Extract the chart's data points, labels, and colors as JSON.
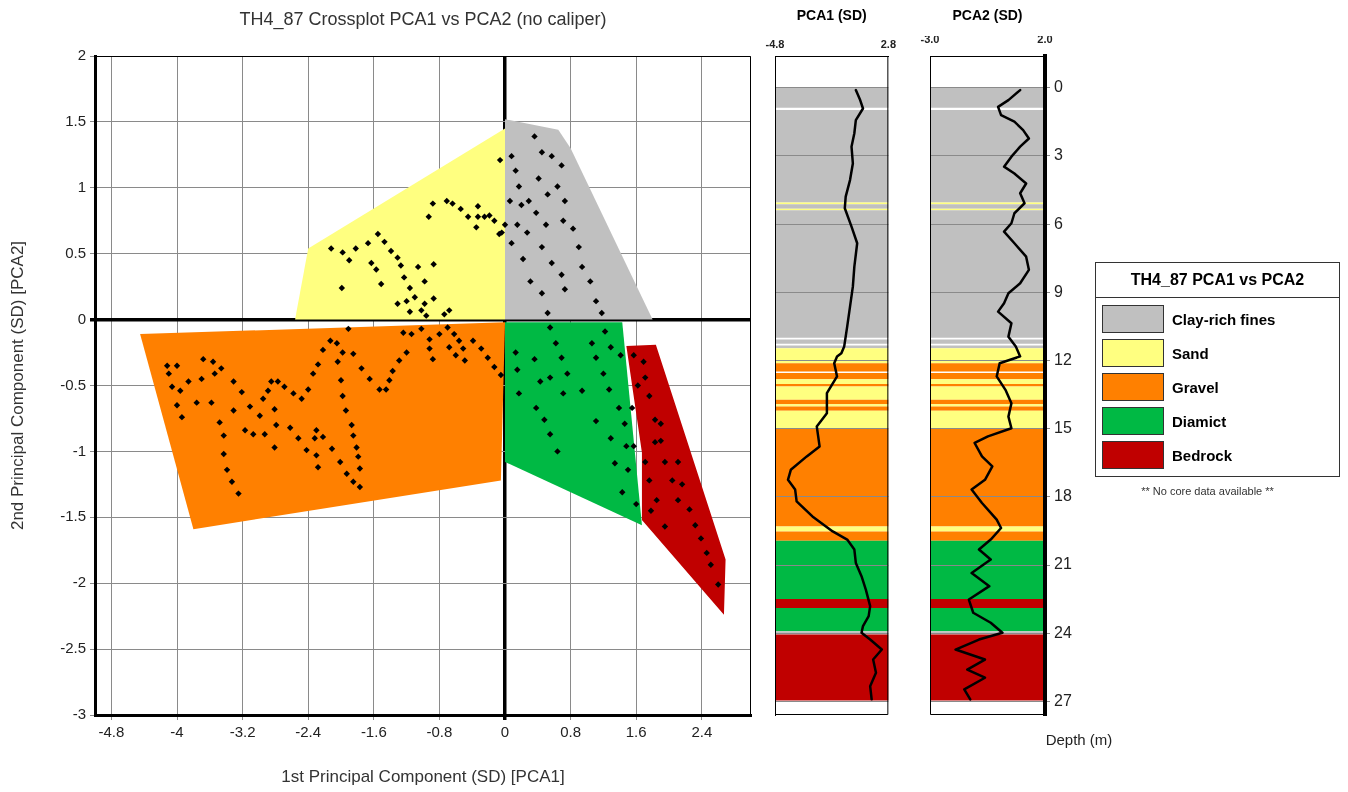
{
  "chart_data": [
    {
      "type": "scatter",
      "title": "TH4_87 Crossplot PCA1 vs PCA2 (no caliper)",
      "xlabel": "1st Principal Component (SD) [PCA1]",
      "ylabel": "2nd Principal Component (SD) [PCA2]",
      "xlim": [
        -5,
        3
      ],
      "ylim": [
        -3,
        2
      ],
      "xticks": [
        -4.8,
        -4,
        -3.2,
        -2.4,
        -1.6,
        -0.8,
        0,
        0.8,
        1.6,
        2.4
      ],
      "yticks": [
        -3,
        -2.5,
        -2,
        -1.5,
        -1,
        -0.5,
        0,
        0.5,
        1,
        1.5,
        2
      ],
      "grid": true,
      "legend": "right",
      "legend_title": "TH4_87 PCA1 vs PCA2",
      "annotations": [
        "** No core data available **"
      ],
      "series": [
        {
          "type": "area",
          "name": "Clay-rich fines",
          "color": "#c0c0c0",
          "x": [
            0,
            0.65,
            0.8,
            1.8,
            0
          ],
          "values": [
            1.52,
            1.44,
            1.3,
            0,
            0
          ]
        },
        {
          "type": "area",
          "name": "Sand",
          "color": "#ffff80",
          "x": [
            0,
            -2.4,
            -2.56,
            0
          ],
          "values": [
            1.45,
            0.54,
            0,
            0
          ]
        },
        {
          "type": "area",
          "name": "Gravel",
          "color": "#ff8000",
          "x": [
            -4.45,
            0,
            -0.05,
            -3.8
          ],
          "values": [
            -0.11,
            -0.02,
            -1.22,
            -1.59
          ]
        },
        {
          "type": "area",
          "name": "Diamict",
          "color": "#00b944",
          "x": [
            0,
            1.43,
            1.67,
            0
          ],
          "values": [
            -0.02,
            -0.02,
            -1.56,
            -1.08
          ]
        },
        {
          "type": "area",
          "name": "Bedrock",
          "color": "#c00000",
          "x": [
            1.48,
            1.84,
            2.69,
            2.67,
            1.67,
            1.67
          ],
          "values": [
            -0.2,
            -0.19,
            -1.82,
            -2.24,
            -1.52,
            -1.01
          ]
        },
        {
          "type": "scatter",
          "color": "#000000",
          "marker": "diamond",
          "x": [
            -4.12,
            -4.0,
            -4.1,
            -4.06,
            -3.96,
            -4.0,
            -3.94,
            -3.86,
            -3.76,
            -3.68,
            -3.56,
            -3.54,
            -3.46,
            -3.31,
            -3.7,
            -3.58,
            -3.31,
            -3.48,
            -3.43,
            -3.43,
            -3.39,
            -3.33,
            -3.25,
            -3.21,
            -3.11,
            -3.17,
            -3.07,
            -2.93,
            -2.99,
            -2.95,
            -2.89,
            -2.85,
            -2.77,
            -2.69,
            -2.58,
            -2.48,
            -2.4,
            -2.34,
            -2.28,
            -2.22,
            -2.13,
            -2.05,
            -1.98,
            -1.85,
            -1.75,
            -1.65,
            -1.53,
            -1.45,
            -1.41,
            -1.37,
            -1.29,
            -1.2,
            -2.04,
            -2.0,
            -1.98,
            -1.94,
            -1.87,
            -1.85,
            -1.81,
            -1.79,
            -1.77,
            -1.77,
            -1.85,
            -1.93,
            -2.01,
            -2.11,
            -2.81,
            -2.79,
            -2.81,
            -2.62,
            -2.52,
            -2.42,
            -2.3,
            -2.22,
            -2.3,
            -2.28,
            -2.32,
            -1.91,
            -1.24,
            -1.14,
            -1.02,
            -0.92,
            -0.92,
            -0.88,
            -0.8,
            -0.68,
            -0.62,
            -0.56,
            -0.51,
            -0.6,
            -0.49,
            -0.39,
            -0.29,
            -0.21,
            -0.13,
            -0.05,
            -0.7,
            -2.12,
            -1.98,
            -1.9,
            -1.82,
            -1.67,
            -1.55,
            -1.47,
            -1.39,
            -1.31,
            -1.63,
            -1.57,
            -1.51,
            -1.99,
            -1.27,
            -1.23,
            -1.16,
            -1.06,
            -0.98,
            -0.87,
            -0.87,
            -1.31,
            -1.2,
            -1.1,
            -0.98,
            -1.16,
            -1.02,
            -0.96,
            -0.93,
            -0.88,
            -0.71,
            -0.64,
            -0.54,
            -0.45,
            -0.33,
            -0.33,
            -0.25,
            -0.19,
            -0.13,
            -0.35,
            -0.07,
            -0.74,
            -0.68,
            0.36,
            0.45,
            0.57,
            0.69,
            0.08,
            0.13,
            0.17,
            0.2,
            0.06,
            0.29,
            0.41,
            0.52,
            0.64,
            0.73,
            0.71,
            0.83,
            0.15,
            0.27,
            0.08,
            0.38,
            0.5,
            0.45,
            0.57,
            0.69,
            0.73,
            0.22,
            0.31,
            0.45,
            0.52,
            0.9,
            0.94,
            1.04,
            1.11,
            1.18,
            0.0,
            -0.06,
            -0.04,
            0.55,
            0.62,
            0.69,
            0.76,
            0.71,
            0.94,
            0.13,
            0.15,
            0.17,
            0.36,
            0.43,
            0.55,
            0.38,
            0.48,
            0.55,
            0.64,
            1.06,
            1.11,
            1.2,
            1.27,
            1.22,
            1.29,
            1.39,
            1.46,
            1.55,
            1.11,
            1.29,
            1.34,
            1.43,
            1.5,
            1.57,
            1.6,
            1.48,
            1.41,
            1.57,
            1.69,
            1.71,
            1.76,
            1.83,
            1.9,
            1.95,
            2.04,
            2.11,
            2.16,
            2.25,
            2.32,
            2.39,
            2.46,
            2.51,
            2.6,
            1.76,
            1.85,
            1.95,
            1.71,
            1.83,
            1.9,
            2.11,
            1.62,
            1.78
          ],
          "values": [
            -0.35,
            -0.35,
            -0.41,
            -0.51,
            -0.54,
            -0.65,
            -0.74,
            -0.47,
            -0.63,
            -0.3,
            -0.32,
            -0.41,
            -0.37,
            -0.47,
            -0.45,
            -0.63,
            -0.69,
            -0.78,
            -0.88,
            -1.02,
            -1.14,
            -1.23,
            -1.32,
            -0.55,
            -0.66,
            -0.84,
            -0.87,
            -0.87,
            -0.73,
            -0.6,
            -0.54,
            -0.47,
            -0.47,
            -0.51,
            -0.56,
            -0.6,
            -0.53,
            -0.41,
            -0.34,
            -0.23,
            -0.16,
            -0.18,
            -0.25,
            -0.26,
            -0.37,
            -0.45,
            -0.53,
            -0.53,
            -0.46,
            -0.39,
            -0.31,
            -0.25,
            -0.32,
            -0.46,
            -0.58,
            -0.69,
            -0.8,
            -0.88,
            -0.97,
            -1.04,
            -1.13,
            -1.27,
            -1.23,
            -1.17,
            -1.08,
            -0.98,
            -0.68,
            -0.8,
            -0.97,
            -0.82,
            -0.9,
            -0.99,
            -0.84,
            -0.89,
            -1.03,
            -1.12,
            -0.9,
            -0.07,
            -0.1,
            -0.11,
            -0.07,
            -0.15,
            -0.22,
            -0.3,
            -0.11,
            -0.21,
            -0.11,
            -0.16,
            -0.22,
            -0.27,
            -0.31,
            -0.16,
            -0.22,
            -0.29,
            -0.36,
            -0.42,
            -0.06,
            0.54,
            0.51,
            0.45,
            0.54,
            0.58,
            0.65,
            0.59,
            0.52,
            0.47,
            0.43,
            0.38,
            0.27,
            0.24,
            0.41,
            0.32,
            0.24,
            0.4,
            0.29,
            0.42,
            0.16,
            0.12,
            0.14,
            0.17,
            0.12,
            0.06,
            0.07,
            0.03,
            0.78,
            0.88,
            0.9,
            0.88,
            0.84,
            0.78,
            0.86,
            0.78,
            0.78,
            0.79,
            0.75,
            0.7,
            0.65,
            0.04,
            0.07,
            1.39,
            1.27,
            1.24,
            1.17,
            1.24,
            1.13,
            1.01,
            0.87,
            0.9,
            0.9,
            1.07,
            0.95,
            1.01,
            0.9,
            0.75,
            0.69,
            0.72,
            0.66,
            0.58,
            0.81,
            0.72,
            0.55,
            0.43,
            0.34,
            0.23,
            0.46,
            0.29,
            0.2,
            0.05,
            0.55,
            0.4,
            0.29,
            0.14,
            0.05,
            0.72,
            1.21,
            0.66,
            -0.06,
            -0.18,
            -0.29,
            -0.41,
            -0.56,
            -0.54,
            -0.25,
            -0.38,
            -0.56,
            -0.3,
            -0.47,
            -0.44,
            -0.67,
            -0.76,
            -0.87,
            -1.0,
            -0.18,
            -0.29,
            -0.41,
            -0.53,
            -0.09,
            -0.21,
            -0.67,
            -0.79,
            -0.67,
            -0.77,
            -0.9,
            -1.09,
            -1.31,
            -1.14,
            -0.96,
            -1.4,
            -0.96,
            -0.27,
            -0.27,
            -0.32,
            -0.44,
            -0.58,
            -0.76,
            -0.92,
            -1.08,
            -1.22,
            -1.37,
            -1.25,
            -1.44,
            -1.56,
            -1.66,
            -1.77,
            -1.86,
            -2.01,
            -1.22,
            -1.37,
            -1.57,
            -1.08,
            -0.93,
            -0.79,
            -1.08,
            -0.5,
            -1.45
          ]
        }
      ]
    },
    {
      "type": "line",
      "title": "PCA1 (SD)",
      "xlim": [
        -4.8,
        2.8
      ],
      "xticks": [
        -4.8,
        2.8
      ],
      "ylim": [
        27.6,
        -1.4
      ],
      "yticks": [
        0,
        3,
        6,
        9,
        12,
        15,
        18,
        21,
        24,
        27
      ],
      "grid": "y",
      "tick_labels": "x",
      "bands": [
        {
          "axis": "y",
          "from": 0,
          "to": 0.88,
          "color": "#c0c0c0"
        },
        {
          "axis": "y",
          "from": 0.98,
          "to": 5.05,
          "color": "#c0c0c0"
        },
        {
          "axis": "y",
          "from": 5.05,
          "to": 5.12,
          "color": "#ffff80"
        },
        {
          "axis": "y",
          "from": 5.12,
          "to": 5.32,
          "color": "#c0c0c0"
        },
        {
          "axis": "y",
          "from": 5.32,
          "to": 5.39,
          "color": "#ffff80"
        },
        {
          "axis": "y",
          "from": 5.39,
          "to": 11.0,
          "color": "#c0c0c0"
        },
        {
          "axis": "y",
          "from": 11.08,
          "to": 11.26,
          "color": "#c0c0c0"
        },
        {
          "axis": "y",
          "from": 11.34,
          "to": 11.46,
          "color": "#c0c0c0"
        },
        {
          "axis": "y",
          "from": 11.46,
          "to": 12.12,
          "color": "#ffff80"
        },
        {
          "axis": "y",
          "from": 12.12,
          "to": 12.48,
          "color": "#ff8000"
        },
        {
          "axis": "y",
          "from": 12.55,
          "to": 12.82,
          "color": "#ff8000"
        },
        {
          "axis": "y",
          "from": 12.82,
          "to": 13.03,
          "color": "#ffff80"
        },
        {
          "axis": "y",
          "from": 13.03,
          "to": 13.14,
          "color": "#ff8000"
        },
        {
          "axis": "y",
          "from": 13.14,
          "to": 13.73,
          "color": "#ffff80"
        },
        {
          "axis": "y",
          "from": 13.73,
          "to": 13.92,
          "color": "#ff8000"
        },
        {
          "axis": "y",
          "from": 13.92,
          "to": 14.02,
          "color": "#ffff80"
        },
        {
          "axis": "y",
          "from": 14.02,
          "to": 14.21,
          "color": "#ff8000"
        },
        {
          "axis": "y",
          "from": 14.21,
          "to": 15.0,
          "color": "#ffff80"
        },
        {
          "axis": "y",
          "from": 15.0,
          "to": 19.3,
          "color": "#ff8000"
        },
        {
          "axis": "y",
          "from": 19.3,
          "to": 19.52,
          "color": "#ffff80"
        },
        {
          "axis": "y",
          "from": 19.52,
          "to": 19.93,
          "color": "#ff8000"
        },
        {
          "axis": "y",
          "from": 19.93,
          "to": 22.49,
          "color": "#00b944"
        },
        {
          "axis": "y",
          "from": 22.49,
          "to": 22.89,
          "color": "#c00000"
        },
        {
          "axis": "y",
          "from": 22.89,
          "to": 23.91,
          "color": "#00b944"
        },
        {
          "axis": "y",
          "from": 23.91,
          "to": 24.06,
          "color": "#c0c0c0"
        },
        {
          "axis": "y",
          "from": 24.06,
          "to": 26.96,
          "color": "#c00000"
        }
      ],
      "series": [
        {
          "color": "#000000",
          "x": [
            0.62,
            0.91,
            1.1,
            0.62,
            0.52,
            0.33,
            0.42,
            0.23,
            -0.06,
            -0.12,
            0.33,
            0.71,
            0.52,
            0.42,
            0.23,
            0.04,
            -0.16,
            -0.35,
            -0.64,
            -0.83,
            -0.64,
            -1.32,
            -1.32,
            -2.0,
            -1.81,
            -2.67,
            -3.74,
            -3.93,
            -3.45,
            -3.35,
            -2.29,
            -0.93,
            0.04,
            0.52,
            0.62,
            1.0,
            1.29,
            1.58,
            1.48,
            1.1,
            1.0,
            1.58,
            2.36,
            1.78,
            1.97,
            1.58,
            1.68
          ],
          "values": [
            0.1,
            0.54,
            0.91,
            1.42,
            2.0,
            2.59,
            3.33,
            4.06,
            4.79,
            5.3,
            6.11,
            6.84,
            7.87,
            8.75,
            9.63,
            10.51,
            11.38,
            11.68,
            11.82,
            12.12,
            12.7,
            13.44,
            14.32,
            14.9,
            15.78,
            16.22,
            16.81,
            17.25,
            17.68,
            18.2,
            18.86,
            19.52,
            19.88,
            20.32,
            20.91,
            21.49,
            22.08,
            22.81,
            23.25,
            23.69,
            23.98,
            24.28,
            24.72,
            25.16,
            25.74,
            26.33,
            26.91
          ]
        }
      ]
    },
    {
      "type": "line",
      "title": "PCA2 (SD)",
      "ylabel": "Depth (m)",
      "xlim": [
        -3,
        2
      ],
      "xticks": [
        {
          "value": -3,
          "label": "-3.0"
        },
        {
          "value": 2,
          "label": "2.0"
        }
      ],
      "ylim": [
        27.6,
        -1.4
      ],
      "yticks": [
        0,
        3,
        6,
        9,
        12,
        15,
        18,
        21,
        24,
        27
      ],
      "grid": "y",
      "bands": [
        {
          "axis": "y",
          "from": 0,
          "to": 0.88,
          "color": "#c0c0c0"
        },
        {
          "axis": "y",
          "from": 0.98,
          "to": 5.05,
          "color": "#c0c0c0"
        },
        {
          "axis": "y",
          "from": 5.05,
          "to": 5.12,
          "color": "#ffff80"
        },
        {
          "axis": "y",
          "from": 5.12,
          "to": 5.32,
          "color": "#c0c0c0"
        },
        {
          "axis": "y",
          "from": 5.32,
          "to": 5.39,
          "color": "#ffff80"
        },
        {
          "axis": "y",
          "from": 5.39,
          "to": 11.0,
          "color": "#c0c0c0"
        },
        {
          "axis": "y",
          "from": 11.08,
          "to": 11.26,
          "color": "#c0c0c0"
        },
        {
          "axis": "y",
          "from": 11.34,
          "to": 11.46,
          "color": "#c0c0c0"
        },
        {
          "axis": "y",
          "from": 11.46,
          "to": 12.12,
          "color": "#ffff80"
        },
        {
          "axis": "y",
          "from": 12.12,
          "to": 12.48,
          "color": "#ff8000"
        },
        {
          "axis": "y",
          "from": 12.55,
          "to": 12.82,
          "color": "#ff8000"
        },
        {
          "axis": "y",
          "from": 12.82,
          "to": 13.03,
          "color": "#ffff80"
        },
        {
          "axis": "y",
          "from": 13.03,
          "to": 13.14,
          "color": "#ff8000"
        },
        {
          "axis": "y",
          "from": 13.14,
          "to": 13.73,
          "color": "#ffff80"
        },
        {
          "axis": "y",
          "from": 13.73,
          "to": 13.92,
          "color": "#ff8000"
        },
        {
          "axis": "y",
          "from": 13.92,
          "to": 14.02,
          "color": "#ffff80"
        },
        {
          "axis": "y",
          "from": 14.02,
          "to": 14.21,
          "color": "#ff8000"
        },
        {
          "axis": "y",
          "from": 14.21,
          "to": 15.0,
          "color": "#ffff80"
        },
        {
          "axis": "y",
          "from": 15.0,
          "to": 19.3,
          "color": "#ff8000"
        },
        {
          "axis": "y",
          "from": 19.3,
          "to": 19.52,
          "color": "#ffff80"
        },
        {
          "axis": "y",
          "from": 19.52,
          "to": 19.93,
          "color": "#ff8000"
        },
        {
          "axis": "y",
          "from": 19.93,
          "to": 22.49,
          "color": "#00b944"
        },
        {
          "axis": "y",
          "from": 22.49,
          "to": 22.89,
          "color": "#c00000"
        },
        {
          "axis": "y",
          "from": 22.89,
          "to": 23.91,
          "color": "#00b944"
        },
        {
          "axis": "y",
          "from": 23.91,
          "to": 24.06,
          "color": "#c0c0c0"
        },
        {
          "axis": "y",
          "from": 24.06,
          "to": 26.96,
          "color": "#c00000"
        }
      ],
      "series": [
        {
          "color": "#000000",
          "x": [
            0.92,
            0.41,
            -0.04,
            0.09,
            0.67,
            1.05,
            1.3,
            0.92,
            0.54,
            0.22,
            0.67,
            1.18,
            0.92,
            1.11,
            0.67,
            0.54,
            0.22,
            0.67,
            1.18,
            1.3,
            0.92,
            0.41,
            0.22,
            -0.04,
            0.54,
            0.41,
            0.73,
            0.92,
            0.03,
            -0.1,
            0.28,
            0.54,
            0.41,
            0.54,
            -0.48,
            -1.06,
            -0.74,
            -0.29,
            -0.61,
            -1.19,
            -0.74,
            -0.1,
            0.09,
            -0.36,
            -0.87,
            -0.36,
            -1.19,
            -0.42,
            -1.31,
            -1.12,
            -0.36,
            0.15,
            -0.87,
            -1.89,
            -0.61,
            -1.38,
            -0.61,
            -1.51,
            -1.25
          ],
          "values": [
            0.1,
            0.54,
            0.84,
            1.2,
            1.49,
            1.86,
            2.23,
            2.59,
            3.03,
            3.47,
            3.77,
            4.21,
            4.64,
            5.08,
            5.52,
            5.96,
            6.33,
            6.84,
            7.43,
            8.01,
            8.6,
            9.04,
            9.48,
            9.85,
            10.36,
            10.95,
            11.38,
            11.82,
            12.12,
            12.7,
            13.29,
            13.88,
            14.47,
            14.98,
            15.34,
            15.63,
            16.22,
            16.66,
            17.25,
            17.68,
            18.27,
            19.0,
            19.37,
            19.88,
            20.32,
            20.76,
            21.35,
            21.93,
            22.52,
            23.1,
            23.54,
            23.98,
            24.28,
            24.72,
            25.16,
            25.6,
            25.96,
            26.47,
            26.91
          ]
        }
      ]
    }
  ]
}
